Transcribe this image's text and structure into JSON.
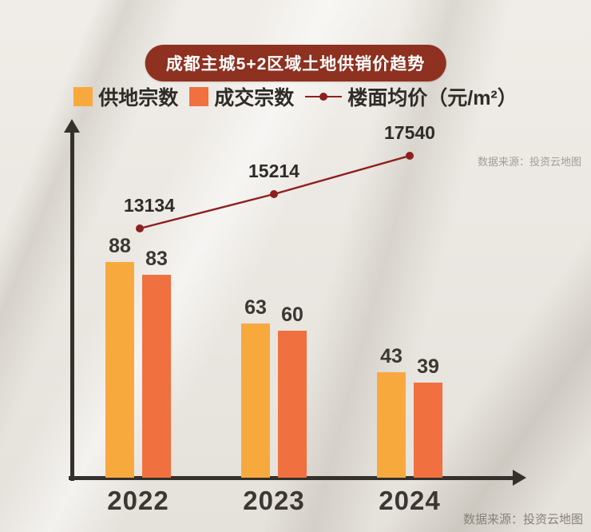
{
  "meta": {
    "source_top": "数据来源：投资云地图",
    "source_bottom": "数据来源：投资云地图"
  },
  "chart_data": {
    "type": "bar+line",
    "title": "成都主城5+2区域土地供销价趋势",
    "categories": [
      "2022",
      "2023",
      "2024"
    ],
    "series": [
      {
        "name": "供地宗数",
        "type": "bar",
        "color": "#F8A93E",
        "values": [
          88,
          63,
          43
        ]
      },
      {
        "name": "成交宗数",
        "type": "bar",
        "color": "#F0703F",
        "values": [
          83,
          60,
          39
        ]
      },
      {
        "name": "楼面均价（元/m²）",
        "type": "line",
        "color": "#8E1F1F",
        "values": [
          13134,
          15214,
          17540
        ]
      }
    ],
    "bar_ylim": [
      0,
      95
    ],
    "line_ylim": [
      12000,
      18000
    ],
    "grid": false,
    "legend_position": "top",
    "xlabel": "",
    "ylabel": ""
  }
}
